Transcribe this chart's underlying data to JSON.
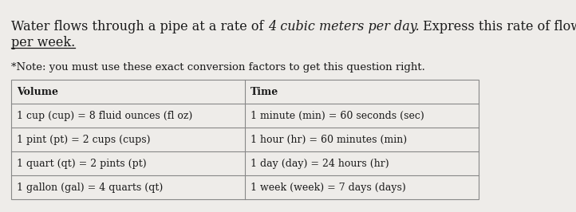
{
  "bg_color": "#eeece9",
  "text_color": "#1a1a1a",
  "table_border_color": "#888888",
  "note_text": "*Note: you must use these exact conversion factors to get this question right.",
  "table_headers": [
    "Volume",
    "Time"
  ],
  "volume_rows": [
    "1 cup (cup) = 8 fluid ounces (fl oz)",
    "1 pint (pt) = 2 cups (cups)",
    "1 quart (qt) = 2 pints (pt)",
    "1 gallon (gal) = 4 quarts (qt)"
  ],
  "time_rows": [
    "1 minute (min) = 60 seconds (sec)",
    "1 hour (hr) = 60 minutes (min)",
    "1 day (day) = 24 hours (hr)",
    "1 week (week) = 7 days (days)"
  ],
  "font_size_q": 11.5,
  "font_size_note": 9.5,
  "font_size_table": 9.0,
  "fig_width": 7.22,
  "fig_height": 2.66,
  "dpi": 100
}
